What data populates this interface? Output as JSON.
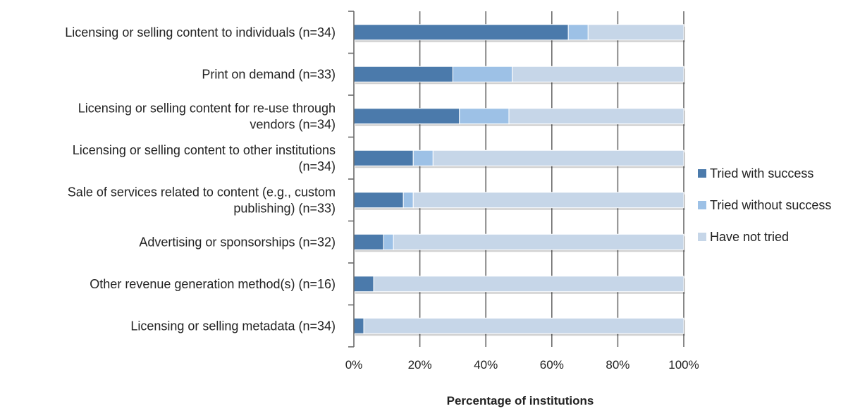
{
  "chart_data": {
    "type": "bar",
    "orientation": "horizontal",
    "stacked": true,
    "percent_stacked": true,
    "title": "",
    "xlabel": "Percentage of institutions",
    "ylabel": "",
    "xlim": [
      0,
      100
    ],
    "x_ticks": [
      "0%",
      "20%",
      "40%",
      "60%",
      "80%",
      "100%"
    ],
    "grid": true,
    "legend_position": "right",
    "categories": [
      [
        "Licensing or selling content to individuals (n=34)"
      ],
      [
        "Print on demand (n=33)"
      ],
      [
        "Licensing or selling content for re-use through",
        "vendors (n=34)"
      ],
      [
        "Licensing or selling content to other institutions",
        "(n=34)"
      ],
      [
        "Sale of services related to content (e.g., custom",
        "publishing) (n=33)"
      ],
      [
        "Advertising or sponsorships (n=32)"
      ],
      [
        "Other revenue generation method(s) (n=16)"
      ],
      [
        "Licensing or selling metadata (n=34)"
      ]
    ],
    "series": [
      {
        "name": "Tried with success",
        "color": "#4b7aab",
        "values": [
          65,
          30,
          32,
          18,
          15,
          9,
          6,
          3
        ]
      },
      {
        "name": "Tried without success",
        "color": "#9dc1e6",
        "values": [
          6,
          18,
          15,
          6,
          3,
          3,
          0,
          0
        ]
      },
      {
        "name": "Have not tried",
        "color": "#c6d6e8",
        "values": [
          29,
          52,
          53,
          76,
          82,
          88,
          94,
          97
        ]
      }
    ]
  }
}
